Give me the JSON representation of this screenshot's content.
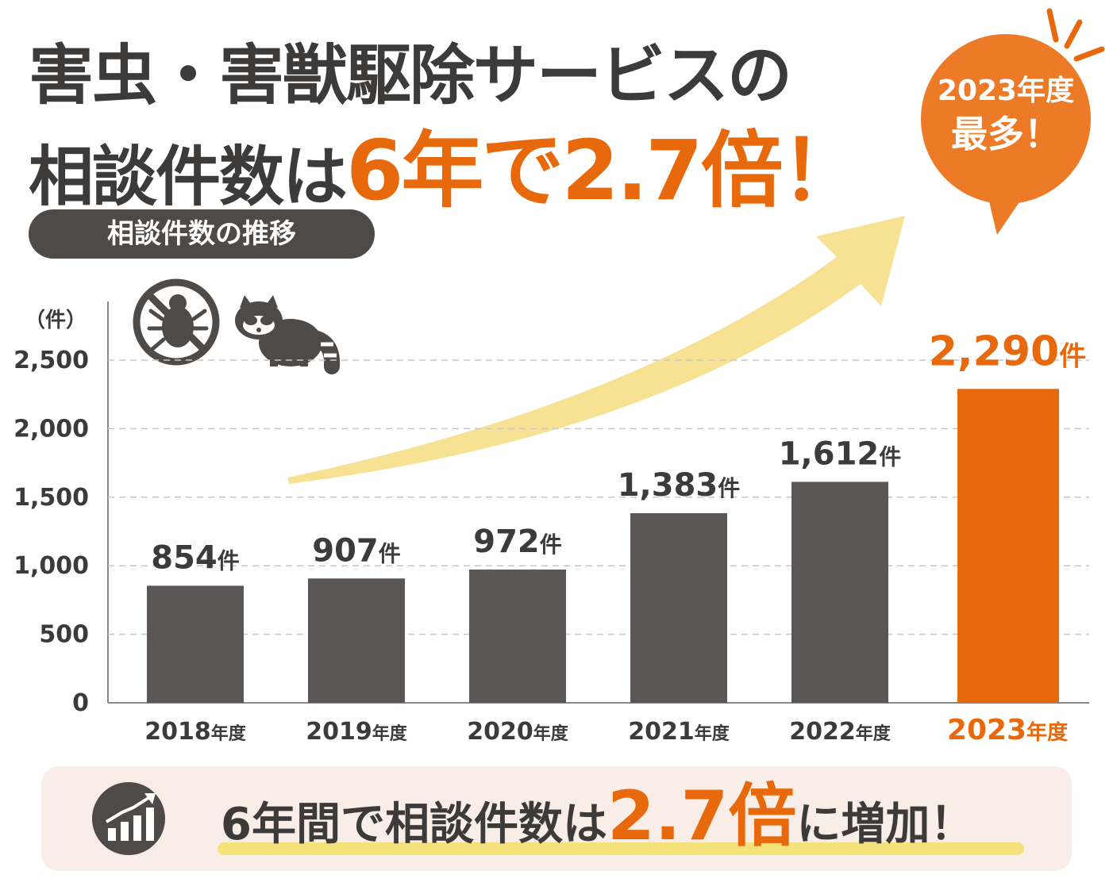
{
  "headline": {
    "line1": "害虫・害獣駆除サービスの",
    "line2_prefix": "相談件数は",
    "line2_accent": "6年で2.7倍！"
  },
  "subtitle_pill": "相談件数の推移",
  "bubble": {
    "line1": "2023年度",
    "line2": "最多！"
  },
  "footer": {
    "text_prefix": "6年間で相談件数は",
    "text_accent": "2.7倍",
    "text_suffix": "に増加！"
  },
  "icons": [
    "no-bug-icon",
    "raccoon-icon",
    "trend-arrow-icon",
    "bar-chart-growth-icon"
  ],
  "colors": {
    "accent": "#e8690c",
    "bar": "#595655",
    "arrow": "#f7df8c",
    "footer_bg": "#f8eee7",
    "pill_bg": "#4d4a48"
  },
  "chart_data": {
    "type": "bar",
    "unit_label": "（件）",
    "categories": [
      "2018年度",
      "2019年度",
      "2020年度",
      "2021年度",
      "2022年度",
      "2023年度"
    ],
    "values": [
      854,
      907,
      972,
      1383,
      1612,
      2290
    ],
    "data_labels": [
      "854件",
      "907件",
      "972件",
      "1,383件",
      "1,612件",
      "2,290件"
    ],
    "highlight_index": 5,
    "ylim": [
      0,
      2500
    ],
    "yticks": [
      0,
      500,
      1000,
      1500,
      2000,
      2500
    ],
    "ytick_labels": [
      "0",
      "500",
      "1,000",
      "1,500",
      "2,000",
      "2,500"
    ],
    "grid": true
  }
}
